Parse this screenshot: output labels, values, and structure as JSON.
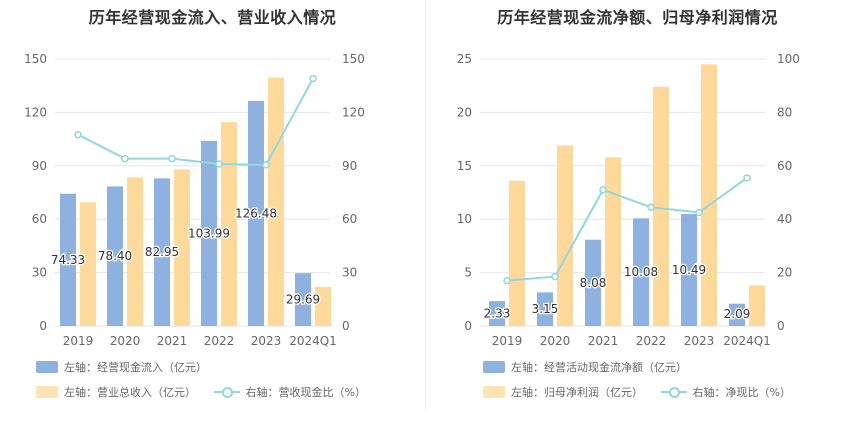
{
  "colors": {
    "bar_left": "#8fb1e0",
    "bar_right": "#ffd99a",
    "line": "#8fd8dd",
    "grid": "#e6e6e6",
    "axis_text": "#666666"
  },
  "chart_data": [
    {
      "type": "bar",
      "title": "历年经营现金流入、营业收入情况",
      "categories": [
        "2019",
        "2020",
        "2021",
        "2022",
        "2023",
        "2024Q1"
      ],
      "y_left": {
        "ylim": [
          0,
          150
        ],
        "ticks": [
          0,
          30,
          60,
          90,
          120,
          150
        ]
      },
      "y_right": {
        "ylim": [
          0,
          150
        ],
        "ticks": [
          0,
          30,
          60,
          90,
          120,
          150
        ]
      },
      "grid": true,
      "legend_position": "bottom-left",
      "series": [
        {
          "name": "左轴：经营现金流入（亿元）",
          "kind": "bar",
          "axis": "left",
          "color": "#8fb1e0",
          "values": [
            74.33,
            78.4,
            82.95,
            103.99,
            126.48,
            29.69
          ],
          "labels": [
            "74.33",
            "78.40",
            "82.95",
            "103.99",
            "126.48",
            "29.69"
          ]
        },
        {
          "name": "左轴：营业总收入（亿元）",
          "kind": "bar",
          "axis": "left",
          "color": "#ffd99a",
          "values": [
            69.5,
            83.5,
            88.0,
            114.5,
            139.5,
            22.0
          ]
        },
        {
          "name": "右轴：营收现金比（%）",
          "kind": "line",
          "axis": "right",
          "color": "#8fd8dd",
          "values": [
            107.5,
            94.0,
            94.0,
            91.0,
            90.5,
            139.0
          ]
        }
      ]
    },
    {
      "type": "bar",
      "title": "历年经营现金流净额、归母净利润情况",
      "categories": [
        "2019",
        "2020",
        "2021",
        "2022",
        "2023",
        "2024Q1"
      ],
      "y_left": {
        "ylim": [
          0,
          25
        ],
        "ticks": [
          0,
          5,
          10,
          15,
          20,
          25
        ]
      },
      "y_right": {
        "ylim": [
          0,
          100
        ],
        "ticks": [
          0,
          20,
          40,
          60,
          80,
          100
        ]
      },
      "grid": true,
      "legend_position": "bottom-left",
      "series": [
        {
          "name": "左轴：经营活动现金流净额（亿元）",
          "kind": "bar",
          "axis": "left",
          "color": "#8fb1e0",
          "values": [
            2.33,
            3.15,
            8.08,
            10.08,
            10.49,
            2.09
          ],
          "labels": [
            "2.33",
            "3.15",
            "8.08",
            "10.08",
            "10.49",
            "2.09"
          ]
        },
        {
          "name": "左轴：归母净利润（亿元）",
          "kind": "bar",
          "axis": "left",
          "color": "#ffd99a",
          "values": [
            13.6,
            16.9,
            15.8,
            22.4,
            24.5,
            3.8
          ]
        },
        {
          "name": "右轴：净现比（%）",
          "kind": "line",
          "axis": "right",
          "color": "#8fd8dd",
          "values": [
            17.0,
            18.5,
            51.0,
            44.5,
            42.5,
            55.5
          ]
        }
      ]
    }
  ]
}
